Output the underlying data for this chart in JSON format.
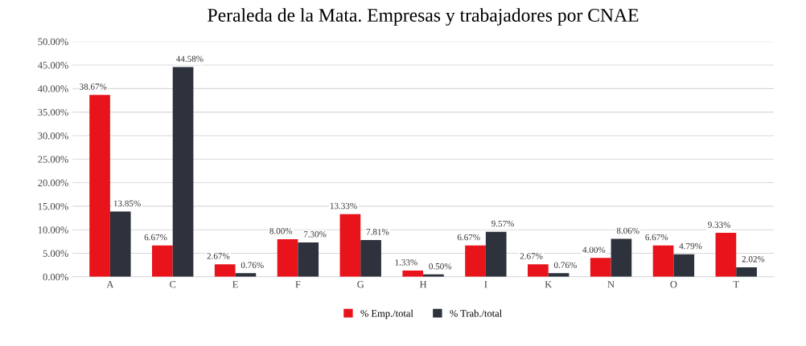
{
  "chart_data": {
    "type": "bar",
    "title": "Peraleda de la Mata. Empresas y trabajadores por CNAE",
    "categories": [
      "A",
      "C",
      "E",
      "F",
      "G",
      "H",
      "I",
      "K",
      "N",
      "O",
      "T"
    ],
    "series": [
      {
        "name": "% Emp./total",
        "color": "#e8131b",
        "values": [
          38.67,
          6.67,
          2.67,
          8.0,
          13.33,
          1.33,
          6.67,
          2.67,
          4.0,
          6.67,
          9.33
        ],
        "value_labels": [
          "38.67%",
          "6.67%",
          "2.67%",
          "8.00%",
          "13.33%",
          "1.33%",
          "6.67%",
          "2.67%",
          "4.00%",
          "6.67%",
          "9.33%"
        ]
      },
      {
        "name": "% Trab./total",
        "color": "#2d323c",
        "values": [
          13.85,
          44.58,
          0.76,
          7.3,
          7.81,
          0.5,
          9.57,
          0.76,
          8.06,
          4.79,
          2.02
        ],
        "value_labels": [
          "13.85%",
          "44.58%",
          "0.76%",
          "7.30%",
          "7.81%",
          "0.50%",
          "9.57%",
          "0.76%",
          "8.06%",
          "4.79%",
          "2.02%"
        ]
      }
    ],
    "ylim": [
      0,
      50
    ],
    "yticks": [
      {
        "value": 0,
        "label": "0.00%"
      },
      {
        "value": 5,
        "label": "5.00%"
      },
      {
        "value": 10,
        "label": "10.00%"
      },
      {
        "value": 15,
        "label": "15.00%"
      },
      {
        "value": 20,
        "label": "20.00%"
      },
      {
        "value": 25,
        "label": "25.00%"
      },
      {
        "value": 30,
        "label": "30.00%"
      },
      {
        "value": 35,
        "label": "35.00%"
      },
      {
        "value": 40,
        "label": "40.00%"
      },
      {
        "value": 45,
        "label": "45.00%"
      },
      {
        "value": 50,
        "label": "50.00%"
      }
    ],
    "grid": "y",
    "legend": "bottom"
  }
}
